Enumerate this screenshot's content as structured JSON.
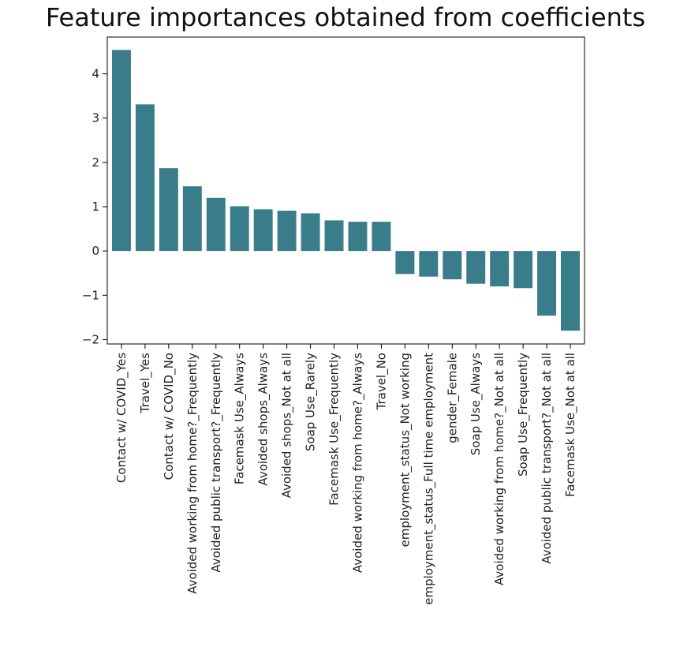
{
  "chart_data": {
    "type": "bar",
    "title": "Feature importances obtained from coefficients",
    "xlabel": "",
    "ylabel": "",
    "categories": [
      "Contact w/ COVID_Yes",
      "Travel_Yes",
      "Contact w/ COVID_No",
      "Avoided working from home?_Frequently",
      "Avoided public transport?_Frequently",
      "Facemask Use_Always",
      "Avoided shops_Always",
      "Avoided shops_Not at all",
      "Soap Use_Rarely",
      "Facemask Use_Frequently",
      "Avoided working from home?_Always",
      "Travel_No",
      "employment_status_Not working",
      "employment_status_Full time employment",
      "gender_Female",
      "Soap Use_Always",
      "Avoided working from home?_Not at all",
      "Soap Use_Frequently",
      "Avoided public transport?_Not at all",
      "Facemask Use_Not at all"
    ],
    "values": [
      4.54,
      3.31,
      1.87,
      1.46,
      1.2,
      1.01,
      0.94,
      0.91,
      0.85,
      0.69,
      0.66,
      0.66,
      -0.52,
      -0.58,
      -0.64,
      -0.74,
      -0.8,
      -0.84,
      -1.46,
      -1.8
    ],
    "yticks": [
      -2,
      -1,
      0,
      1,
      2,
      3,
      4
    ],
    "ylim": [
      -2.1,
      4.83
    ],
    "bar_color": "#3a7d8a",
    "grid": false,
    "legend": "none"
  }
}
